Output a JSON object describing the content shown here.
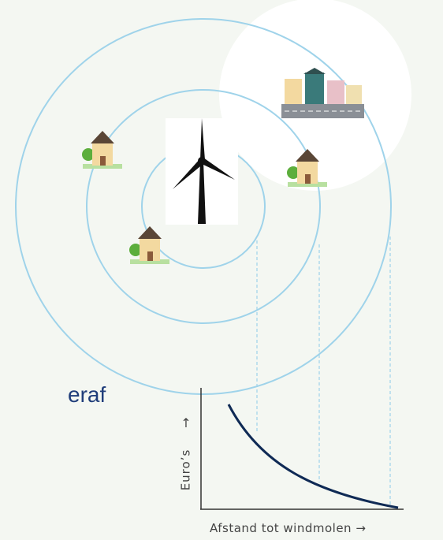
{
  "partial_text": "eraf",
  "axis": {
    "y_arrow": "↑",
    "y_label": "Euro’s",
    "x_label": "Afstand tot windmolen →"
  }
}
